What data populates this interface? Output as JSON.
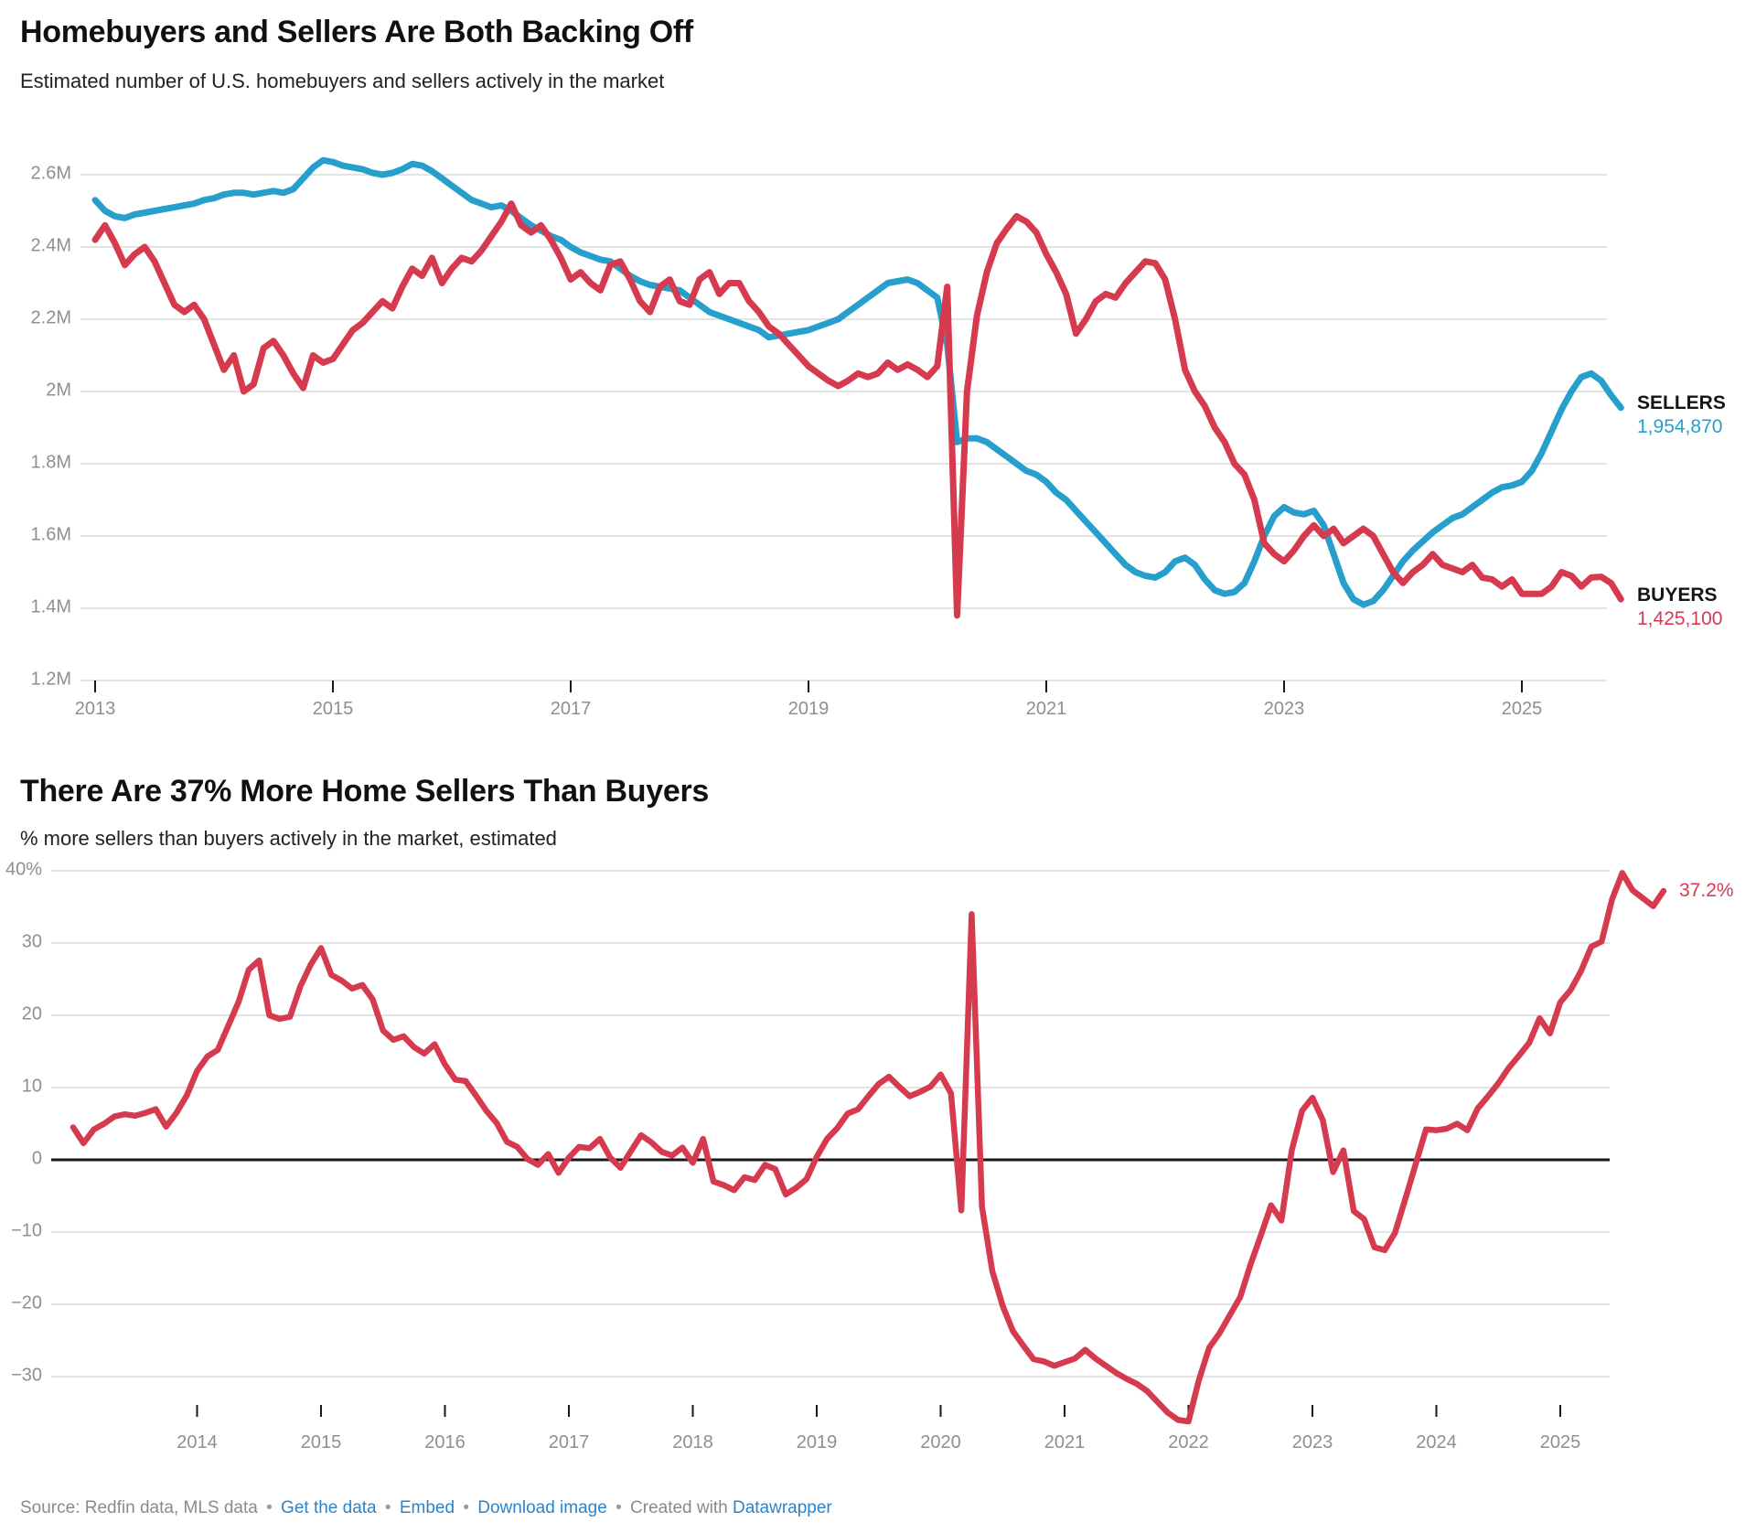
{
  "colors": {
    "sellers_blue": "#279fcc",
    "buyers_red": "#d53a4f",
    "grid_gray": "#e3e3e3",
    "axis_black": "#1a1a1a",
    "tick_label_gray": "#8f8f8f",
    "link_blue": "#2d83c8"
  },
  "header1": {
    "title": "Homebuyers and Sellers Are Both Backing Off",
    "subtitle": "Estimated number of U.S. homebuyers and sellers actively in the market"
  },
  "header2": {
    "title": "There Are 37% More Home Sellers Than Buyers",
    "subtitle": "% more sellers than buyers actively in the market, estimated"
  },
  "legend1": {
    "sellers_label": "SELLERS",
    "sellers_value": "1,954,870",
    "buyers_label": "BUYERS",
    "buyers_value": "1,425,100"
  },
  "chart_data": [
    {
      "type": "line",
      "title": "Homebuyers and Sellers Are Both Backing Off",
      "subtitle": "Estimated number of U.S. homebuyers and sellers actively in the market",
      "frequency": "monthly",
      "x_start": "2013-01",
      "x_end": "2025-11",
      "values_unit": "millions of people",
      "ylim": [
        1.2,
        2.6
      ],
      "grid": "horizontal",
      "y_ticks": [
        "2.6M",
        "2.4M",
        "2.2M",
        "2M",
        "1.8M",
        "1.6M",
        "1.4M",
        "1.2M"
      ],
      "y_tick_values": [
        2.6,
        2.4,
        2.2,
        2.0,
        1.8,
        1.6,
        1.4,
        1.2
      ],
      "x_ticks": [
        2013,
        2015,
        2017,
        2019,
        2021,
        2023,
        2025
      ],
      "legend_position": "right-of-line-end",
      "series": [
        {
          "name": "SELLERS",
          "end_label": "1,954,870",
          "values": [
            2.53,
            2.5,
            2.485,
            2.48,
            2.49,
            2.495,
            2.5,
            2.505,
            2.51,
            2.515,
            2.52,
            2.53,
            2.535,
            2.545,
            2.55,
            2.55,
            2.545,
            2.55,
            2.555,
            2.55,
            2.56,
            2.59,
            2.62,
            2.64,
            2.635,
            2.625,
            2.62,
            2.615,
            2.605,
            2.6,
            2.605,
            2.615,
            2.63,
            2.625,
            2.61,
            2.59,
            2.57,
            2.55,
            2.53,
            2.52,
            2.51,
            2.515,
            2.5,
            2.48,
            2.46,
            2.445,
            2.43,
            2.42,
            2.4,
            2.385,
            2.375,
            2.365,
            2.36,
            2.34,
            2.32,
            2.305,
            2.295,
            2.29,
            2.285,
            2.28,
            2.26,
            2.24,
            2.22,
            2.21,
            2.2,
            2.19,
            2.18,
            2.17,
            2.15,
            2.155,
            2.16,
            2.165,
            2.17,
            2.18,
            2.19,
            2.2,
            2.22,
            2.24,
            2.26,
            2.28,
            2.3,
            2.305,
            2.31,
            2.3,
            2.28,
            2.26,
            2.13,
            1.86,
            1.87,
            1.87,
            1.86,
            1.84,
            1.82,
            1.8,
            1.78,
            1.77,
            1.75,
            1.72,
            1.7,
            1.67,
            1.64,
            1.61,
            1.58,
            1.55,
            1.52,
            1.5,
            1.49,
            1.485,
            1.5,
            1.53,
            1.54,
            1.52,
            1.48,
            1.45,
            1.44,
            1.445,
            1.47,
            1.53,
            1.6,
            1.655,
            1.68,
            1.665,
            1.66,
            1.67,
            1.63,
            1.55,
            1.47,
            1.425,
            1.41,
            1.42,
            1.45,
            1.49,
            1.53,
            1.56,
            1.585,
            1.61,
            1.63,
            1.65,
            1.66,
            1.68,
            1.7,
            1.72,
            1.735,
            1.74,
            1.75,
            1.78,
            1.83,
            1.89,
            1.95,
            2.0,
            2.04,
            2.05,
            2.03,
            1.99,
            1.95487
          ]
        },
        {
          "name": "BUYERS",
          "end_label": "1,425,100",
          "values": [
            2.42,
            2.46,
            2.41,
            2.35,
            2.38,
            2.4,
            2.36,
            2.3,
            2.24,
            2.22,
            2.24,
            2.2,
            2.13,
            2.06,
            2.1,
            2.0,
            2.02,
            2.12,
            2.14,
            2.1,
            2.05,
            2.01,
            2.1,
            2.08,
            2.09,
            2.13,
            2.17,
            2.19,
            2.22,
            2.25,
            2.23,
            2.29,
            2.34,
            2.32,
            2.37,
            2.3,
            2.34,
            2.37,
            2.36,
            2.39,
            2.43,
            2.47,
            2.52,
            2.46,
            2.44,
            2.46,
            2.42,
            2.37,
            2.31,
            2.33,
            2.3,
            2.28,
            2.35,
            2.36,
            2.31,
            2.25,
            2.22,
            2.29,
            2.31,
            2.25,
            2.24,
            2.31,
            2.33,
            2.27,
            2.3,
            2.3,
            2.25,
            2.22,
            2.18,
            2.16,
            2.13,
            2.1,
            2.07,
            2.05,
            2.03,
            2.015,
            2.03,
            2.05,
            2.04,
            2.05,
            2.08,
            2.06,
            2.075,
            2.06,
            2.04,
            2.07,
            2.29,
            1.38,
            2.0,
            2.21,
            2.33,
            2.41,
            2.45,
            2.485,
            2.47,
            2.44,
            2.38,
            2.33,
            2.27,
            2.16,
            2.2,
            2.25,
            2.27,
            2.26,
            2.3,
            2.33,
            2.36,
            2.355,
            2.31,
            2.2,
            2.06,
            2.0,
            1.96,
            1.9,
            1.86,
            1.8,
            1.77,
            1.7,
            1.58,
            1.55,
            1.53,
            1.56,
            1.6,
            1.63,
            1.6,
            1.62,
            1.58,
            1.6,
            1.62,
            1.6,
            1.55,
            1.5,
            1.47,
            1.5,
            1.52,
            1.55,
            1.52,
            1.51,
            1.5,
            1.52,
            1.485,
            1.48,
            1.46,
            1.48,
            1.44,
            1.44,
            1.44,
            1.46,
            1.5,
            1.49,
            1.46,
            1.485,
            1.487,
            1.47,
            1.4251
          ]
        }
      ]
    },
    {
      "type": "line",
      "title": "There Are 37% More Home Sellers Than Buyers",
      "subtitle": "% more sellers than buyers actively in the market, estimated",
      "frequency": "monthly",
      "x_start": "2013-01",
      "x_end": "2025-11",
      "values_unit": "percent",
      "ylim": [
        -36.5,
        40
      ],
      "grid": "horizontal",
      "zero_line": true,
      "y_ticks": [
        "40%",
        "30",
        "20",
        "10",
        "0",
        "−10",
        "−20",
        "−30"
      ],
      "y_tick_values": [
        40,
        30,
        20,
        10,
        0,
        -10,
        -20,
        -30
      ],
      "x_ticks": [
        2014,
        2015,
        2016,
        2017,
        2018,
        2019,
        2020,
        2021,
        2022,
        2023,
        2024,
        2025
      ],
      "end_label": "37.2%",
      "series": [
        {
          "name": "% more sellers than buyers",
          "end_label": "37.2%",
          "values": [
            4.5,
            2.3,
            4.2,
            5.0,
            6.0,
            6.3,
            6.1,
            6.5,
            7.0,
            4.6,
            6.5,
            8.9,
            12.3,
            14.3,
            15.2,
            18.5,
            21.8,
            26.3,
            27.6,
            20.0,
            19.5,
            19.8,
            24.0,
            27.0,
            29.3,
            25.6,
            24.8,
            23.7,
            24.2,
            22.2,
            17.9,
            16.6,
            17.1,
            15.6,
            14.7,
            16.0,
            13.2,
            11.1,
            10.9,
            8.9,
            6.8,
            5.1,
            2.5,
            1.8,
            0.1,
            -0.7,
            0.8,
            -1.8,
            0.3,
            1.8,
            1.6,
            2.9,
            0.3,
            -1.1,
            1.2,
            3.4,
            2.4,
            1.1,
            0.6,
            1.7,
            -0.4,
            2.9,
            -3.0,
            -3.5,
            -4.2,
            -2.4,
            -2.8,
            -0.7,
            -1.3,
            -4.8,
            -3.9,
            -2.7,
            0.4,
            2.9,
            4.4,
            6.4,
            7.0,
            8.8,
            10.5,
            11.5,
            10.1,
            8.8,
            9.4,
            10.1,
            11.8,
            9.2,
            -7.0,
            34.0,
            -6.5,
            -15.4,
            -20.2,
            -23.7,
            -25.7,
            -27.6,
            -27.9,
            -28.5,
            -28.0,
            -27.5,
            -26.3,
            -27.5,
            -28.5,
            -29.5,
            -30.3,
            -31.0,
            -32.0,
            -33.5,
            -35.0,
            -36.0,
            -36.2,
            -30.5,
            -26.0,
            -24.0,
            -21.5,
            -19.0,
            -14.5,
            -10.5,
            -6.3,
            -8.4,
            1.3,
            6.8,
            8.6,
            5.5,
            -1.7,
            1.3,
            -7.1,
            -8.2,
            -12.1,
            -12.5,
            -10.1,
            -5.4,
            -0.6,
            4.2,
            4.1,
            4.3,
            5.0,
            4.1,
            7.1,
            8.8,
            10.6,
            12.7,
            14.4,
            16.2,
            19.6,
            17.5,
            21.8,
            23.5,
            26.1,
            29.5,
            30.2,
            36.0,
            39.7,
            37.3,
            36.2,
            35.1,
            37.2
          ]
        }
      ]
    }
  ],
  "footer": {
    "segments": [
      {
        "name": "source-text",
        "text": "Source: Redfin data, MLS data",
        "link": false
      },
      {
        "name": "separator",
        "text": "•",
        "link": false,
        "sep": true
      },
      {
        "name": "link-get-the-data",
        "text": "Get the data",
        "link": true
      },
      {
        "name": "separator",
        "text": "•",
        "link": false,
        "sep": true
      },
      {
        "name": "link-embed",
        "text": "Embed",
        "link": true
      },
      {
        "name": "separator",
        "text": "•",
        "link": false,
        "sep": true
      },
      {
        "name": "link-download-image",
        "text": "Download image",
        "link": true
      },
      {
        "name": "separator",
        "text": "•",
        "link": false,
        "sep": true
      },
      {
        "name": "created-with-text",
        "text": "Created with",
        "link": false
      },
      {
        "name": "link-datawrapper",
        "text": "Datawrapper",
        "link": true
      }
    ]
  }
}
